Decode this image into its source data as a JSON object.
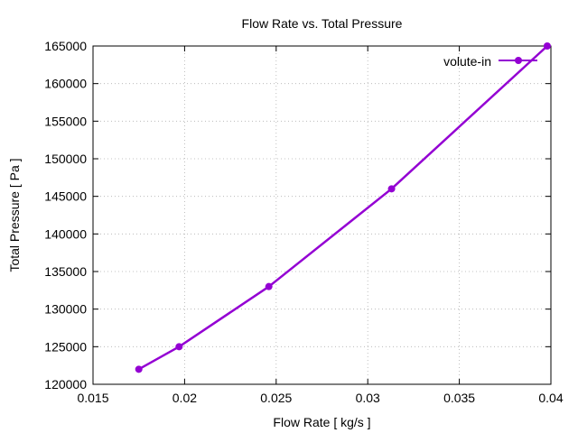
{
  "chart_data": {
    "type": "line",
    "title": "Flow Rate vs. Total Pressure",
    "xlabel": "Flow Rate [ kg/s ]",
    "ylabel": "Total Pressure [ Pa ]",
    "xlim": [
      0.015,
      0.04
    ],
    "ylim": [
      120000,
      165000
    ],
    "xticks": [
      0.015,
      0.02,
      0.025,
      0.03,
      0.035,
      0.04
    ],
    "xtick_labels": [
      "0.015",
      "0.02",
      "0.025",
      "0.03",
      "0.035",
      "0.04"
    ],
    "yticks": [
      120000,
      125000,
      130000,
      135000,
      140000,
      145000,
      150000,
      155000,
      160000,
      165000
    ],
    "ytick_labels": [
      "120000",
      "125000",
      "130000",
      "135000",
      "140000",
      "145000",
      "150000",
      "155000",
      "160000",
      "165000"
    ],
    "grid": true,
    "legend_position": "top-right",
    "series": [
      {
        "name": "volute-in",
        "color": "#9400d3",
        "x": [
          0.0175,
          0.0197,
          0.0246,
          0.0313,
          0.0398
        ],
        "y": [
          122000,
          125000,
          133000,
          146000,
          165000
        ]
      }
    ]
  }
}
